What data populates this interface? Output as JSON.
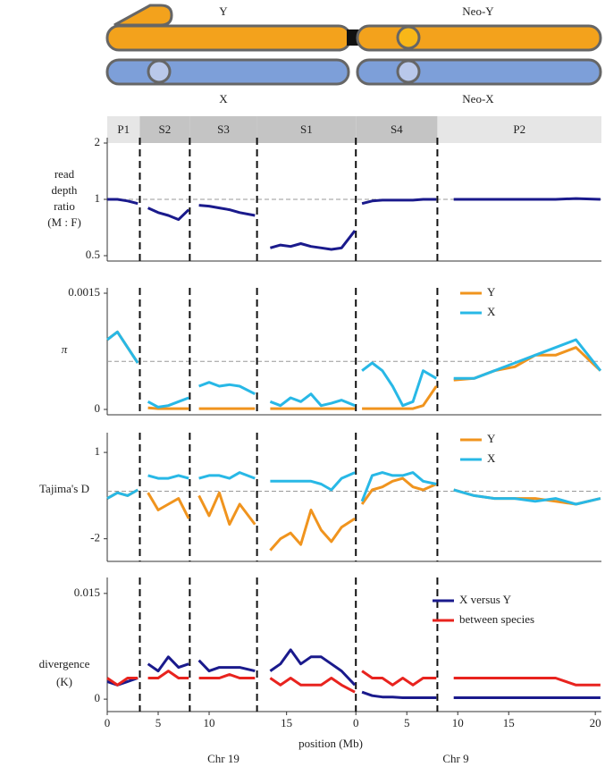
{
  "chromosomes": {
    "top_left": "Y",
    "top_right": "Neo-Y",
    "bottom_left": "X",
    "bottom_right": "Neo-X"
  },
  "regions": [
    {
      "label": "P1",
      "start": 0,
      "end": 3.2
    },
    {
      "label": "S2",
      "start": 3.2,
      "end": 8.1
    },
    {
      "label": "S3",
      "start": 8.1,
      "end": 14.7
    },
    {
      "label": "S1",
      "start": 14.7,
      "end": 24.4
    },
    {
      "label": "S4",
      "start": 24.4,
      "end": 32.4
    },
    {
      "label": "P2",
      "start": 32.4,
      "end": 48.5
    }
  ],
  "boundaries": [
    3.2,
    8.1,
    14.7,
    24.4,
    32.4
  ],
  "xaxis": {
    "label": "position (Mb)",
    "xlim": [
      0,
      48.5
    ],
    "xticks": [
      0,
      5,
      10,
      {
        "value": 17.6,
        "label": "15"
      },
      {
        "value": 24.4,
        "label": "0"
      },
      {
        "value": 29.4,
        "label": "5"
      },
      {
        "value": 34.4,
        "label": "10"
      },
      {
        "value": 39.4,
        "label": "15"
      },
      {
        "value": 47.9,
        "label": "20"
      }
    ],
    "groups": [
      "Chr 19",
      "Chr 9"
    ]
  },
  "position": [
    0,
    1,
    2,
    3,
    3.2,
    4,
    5,
    6,
    7,
    8,
    8.1,
    9,
    10,
    11,
    12,
    13,
    14.5,
    14.7,
    16,
    17,
    18,
    19,
    20,
    21,
    22,
    23,
    24.3,
    24.4,
    25,
    26,
    27,
    28,
    29,
    30,
    31,
    32.3,
    32.4,
    34,
    36,
    38,
    40,
    42,
    44,
    46,
    48.4
  ],
  "chart_data": [
    {
      "type": "line",
      "ylabel": [
        "read",
        "depth",
        "ratio",
        "(M : F)"
      ],
      "log": true,
      "ylim": [
        0.5,
        2
      ],
      "yticks": [
        0.5,
        1,
        2
      ],
      "reference": 1,
      "series": [
        {
          "name": null,
          "color": "#1a1a8c",
          "values": [
            1,
            1,
            0.98,
            0.95,
            null,
            0.9,
            0.85,
            0.82,
            0.78,
            0.88,
            null,
            0.93,
            0.92,
            0.9,
            0.88,
            0.85,
            0.82,
            null,
            0.55,
            0.57,
            0.56,
            0.58,
            0.56,
            0.55,
            0.54,
            0.55,
            0.68,
            null,
            0.95,
            0.98,
            0.99,
            0.99,
            0.99,
            0.99,
            1,
            1,
            null,
            1,
            1,
            1,
            1,
            1,
            1,
            1.01,
            1
          ]
        }
      ]
    },
    {
      "type": "line",
      "ylabel": [
        "π"
      ],
      "log": false,
      "ylim": [
        0,
        0.0015
      ],
      "yticks": [
        0,
        0.0015
      ],
      "reference": 0.00062,
      "series": [
        {
          "name": "Y",
          "color": "#f0941e",
          "values": [
            0.0009,
            0.001,
            0.0008,
            0.0006,
            null,
            2e-05,
            1e-05,
            1e-05,
            1e-05,
            1e-05,
            null,
            1e-05,
            1e-05,
            1e-05,
            1e-05,
            1e-05,
            1e-05,
            null,
            1e-05,
            1e-05,
            1e-05,
            1e-05,
            1e-05,
            1e-05,
            1e-05,
            1e-05,
            1e-05,
            null,
            1e-05,
            1e-05,
            1e-05,
            1e-05,
            1e-05,
            1e-05,
            5e-05,
            0.0003,
            null,
            0.00038,
            0.0004,
            0.0005,
            0.00055,
            0.0007,
            0.0007,
            0.0008,
            0.0005
          ]
        },
        {
          "name": "X",
          "color": "#28b8e6",
          "values": [
            0.0009,
            0.001,
            0.0008,
            0.0006,
            null,
            0.0001,
            3e-05,
            5e-05,
            0.0001,
            0.00015,
            null,
            0.0003,
            0.00035,
            0.0003,
            0.00032,
            0.0003,
            0.0002,
            null,
            0.0001,
            5e-05,
            0.00015,
            0.0001,
            0.0002,
            5e-05,
            8e-05,
            0.00012,
            5e-05,
            null,
            0.0005,
            0.0006,
            0.0005,
            0.0003,
            5e-05,
            0.0001,
            0.0005,
            0.0004,
            null,
            0.0004,
            0.0004,
            0.0005,
            0.0006,
            0.0007,
            0.0008,
            0.0009,
            0.0005
          ]
        }
      ]
    },
    {
      "type": "line",
      "ylabel": [
        "Tajima's D"
      ],
      "log": false,
      "ylim": [
        -2.6,
        1.5
      ],
      "yticks": [
        -2,
        1
      ],
      "reference": -0.35,
      "series": [
        {
          "name": "Y",
          "color": "#f0941e",
          "values": [
            -0.6,
            -0.4,
            -0.5,
            -0.3,
            null,
            -0.4,
            -1.0,
            -0.8,
            -0.6,
            -1.3,
            null,
            -0.5,
            -1.2,
            -0.4,
            -1.5,
            -0.8,
            -1.5,
            null,
            -2.4,
            -2.0,
            -1.8,
            -2.2,
            -1.0,
            -1.7,
            -2.1,
            -1.6,
            -1.3,
            null,
            -0.8,
            -0.3,
            -0.2,
            0,
            0.1,
            -0.2,
            -0.3,
            -0.1,
            null,
            -0.3,
            -0.5,
            -0.6,
            -0.6,
            -0.6,
            -0.7,
            -0.8,
            -0.6
          ]
        },
        {
          "name": "X",
          "color": "#28b8e6",
          "values": [
            -0.6,
            -0.4,
            -0.5,
            -0.3,
            null,
            0.2,
            0.1,
            0.1,
            0.2,
            0.1,
            null,
            0.1,
            0.2,
            0.2,
            0.1,
            0.3,
            0.1,
            null,
            0,
            0,
            0,
            0,
            0,
            -0.1,
            -0.3,
            0.1,
            0.3,
            null,
            -0.7,
            0.2,
            0.3,
            0.2,
            0.2,
            0.3,
            0,
            -0.1,
            null,
            -0.3,
            -0.5,
            -0.6,
            -0.6,
            -0.7,
            -0.6,
            -0.8,
            -0.6
          ]
        }
      ]
    },
    {
      "type": "line",
      "ylabel": [
        "divergence",
        "(K)"
      ],
      "log": false,
      "ylim": [
        -0.001,
        0.0165
      ],
      "yticks": [
        0,
        0.015
      ],
      "series": [
        {
          "name": "X versus Y",
          "color": "#1a1a8c",
          "values": [
            0.0025,
            0.002,
            0.0025,
            0.003,
            null,
            0.005,
            0.004,
            0.006,
            0.0045,
            0.005,
            null,
            0.0055,
            0.004,
            0.0045,
            0.0045,
            0.0045,
            0.004,
            null,
            0.004,
            0.005,
            0.007,
            0.005,
            0.006,
            0.006,
            0.005,
            0.004,
            0.002,
            null,
            0.001,
            0.0005,
            0.0003,
            0.0003,
            0.0002,
            0.0002,
            0.0002,
            0.0002,
            null,
            0.0002,
            0.0002,
            0.0002,
            0.0002,
            0.0002,
            0.0002,
            0.0002,
            0.0002
          ]
        },
        {
          "name": "between species",
          "color": "#e8231e",
          "values": [
            0.003,
            0.002,
            0.003,
            0.003,
            null,
            0.003,
            0.003,
            0.004,
            0.003,
            0.003,
            null,
            0.003,
            0.003,
            0.003,
            0.0035,
            0.003,
            0.003,
            null,
            0.003,
            0.002,
            0.003,
            0.002,
            0.002,
            0.002,
            0.003,
            0.002,
            0.001,
            null,
            0.004,
            0.003,
            0.003,
            0.002,
            0.003,
            0.002,
            0.003,
            0.003,
            null,
            0.003,
            0.003,
            0.003,
            0.003,
            0.003,
            0.003,
            0.002,
            0.002
          ]
        }
      ]
    }
  ]
}
